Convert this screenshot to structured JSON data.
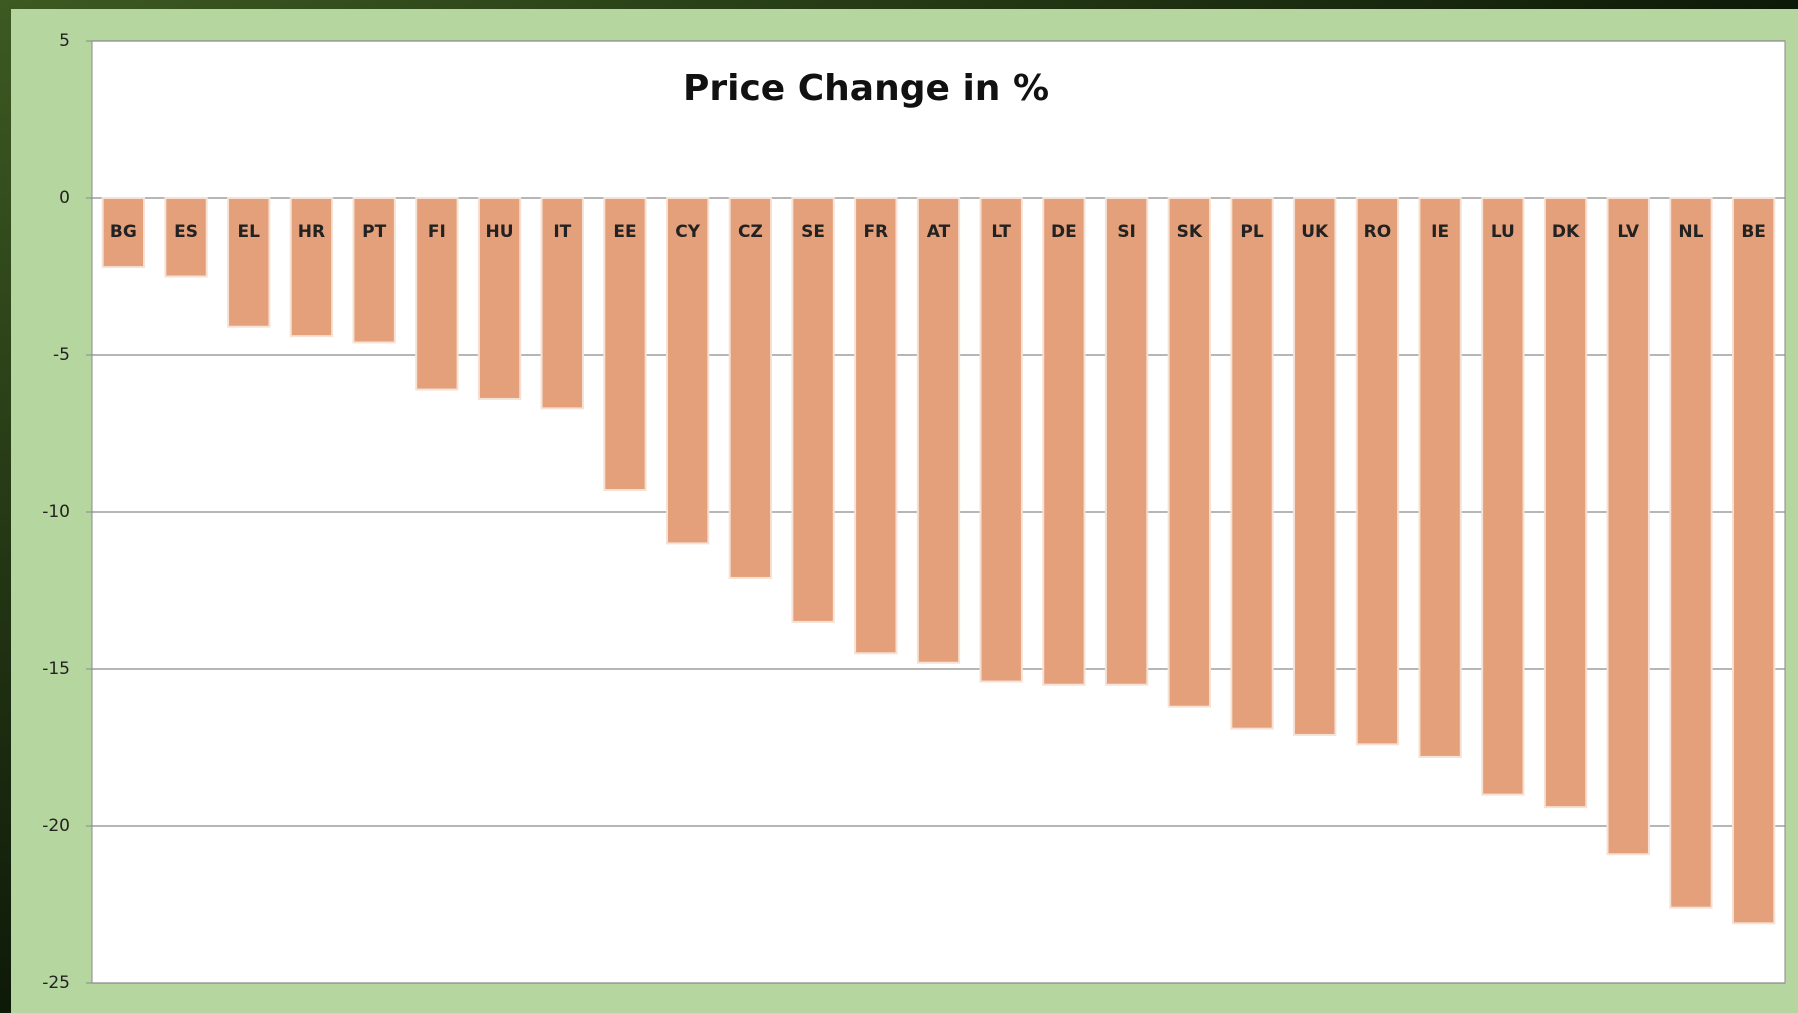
{
  "chart_data": {
    "type": "bar",
    "title": "Price Change in %",
    "categories": [
      "BG",
      "ES",
      "EL",
      "HR",
      "PT",
      "FI",
      "HU",
      "IT",
      "EE",
      "CY",
      "CZ",
      "SE",
      "FR",
      "AT",
      "LT",
      "DE",
      "SI",
      "SK",
      "PL",
      "UK",
      "RO",
      "IE",
      "LU",
      "DK",
      "LV",
      "NL",
      "BE"
    ],
    "values": [
      -2.2,
      -2.5,
      -4.1,
      -4.4,
      -4.6,
      -6.1,
      -6.4,
      -6.7,
      -9.3,
      -11.0,
      -12.1,
      -13.5,
      -14.5,
      -14.8,
      -15.4,
      -15.5,
      -15.5,
      -16.2,
      -16.9,
      -17.1,
      -17.4,
      -17.8,
      -19.0,
      -19.4,
      -20.9,
      -22.6,
      -23.1
    ],
    "color": "#e4a07a",
    "ylim": [
      -25,
      5
    ],
    "yticks": [
      5,
      0,
      -5,
      -10,
      -15,
      -20,
      -25
    ],
    "grid": true
  }
}
